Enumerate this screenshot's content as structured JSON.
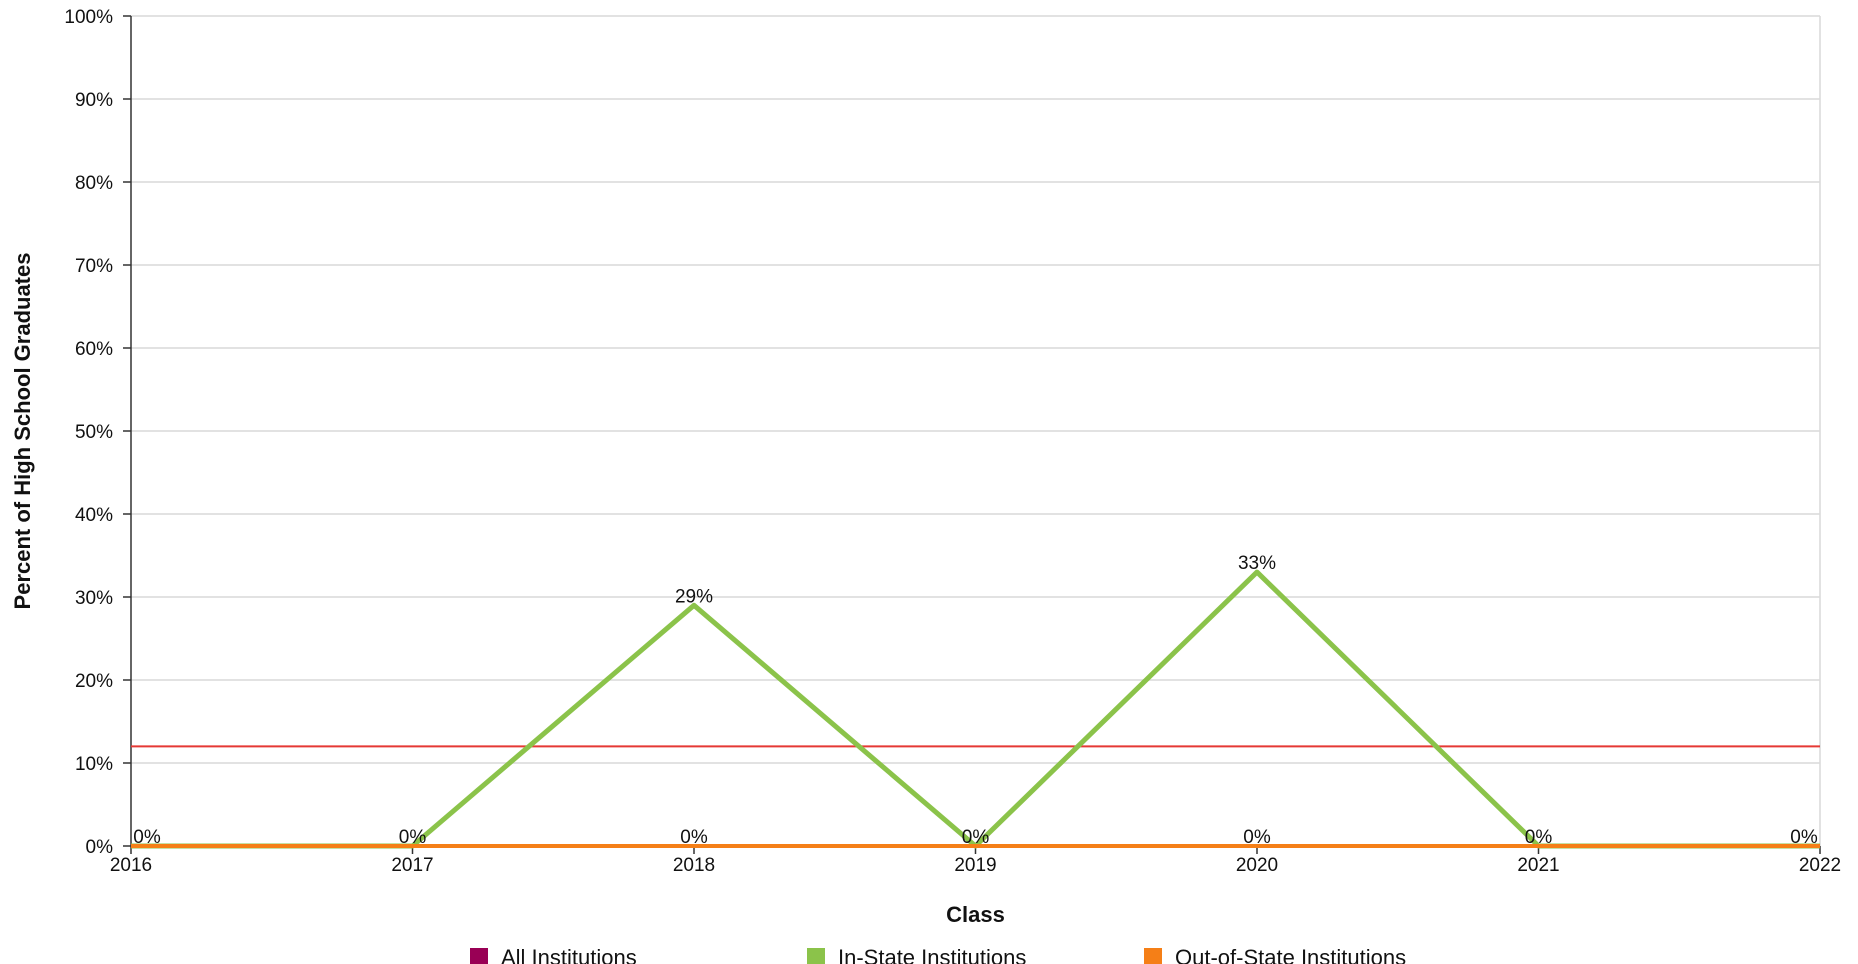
{
  "chart_data": {
    "type": "line",
    "title": "",
    "xlabel": "Class",
    "ylabel": "Percent of High School Graduates",
    "x": [
      "2016",
      "2017",
      "2018",
      "2019",
      "2020",
      "2021",
      "2022"
    ],
    "ylim": [
      0,
      100
    ],
    "y_ticks": [
      "0%",
      "10%",
      "20%",
      "30%",
      "40%",
      "50%",
      "60%",
      "70%",
      "80%",
      "90%",
      "100%"
    ],
    "grid": true,
    "legend_position": "bottom",
    "series": [
      {
        "name": "All Institutions",
        "color": "#990055",
        "values": [
          0,
          0,
          0,
          0,
          0,
          0,
          0
        ],
        "labels": [
          "0%",
          "0%",
          "0%",
          "0%",
          "0%",
          "0%",
          "0%"
        ]
      },
      {
        "name": "In-State Institutions",
        "color": "#8bc34a",
        "values": [
          0,
          0,
          29,
          0,
          33,
          0,
          0
        ],
        "labels": [
          "",
          "",
          "29%",
          "",
          "33%",
          "",
          ""
        ]
      },
      {
        "name": "Out-of-State Institutions",
        "color": "#f57f17",
        "values": [
          0,
          0,
          0,
          0,
          0,
          0,
          0
        ],
        "labels": [
          "",
          "",
          "",
          "",
          "",
          "",
          ""
        ]
      }
    ],
    "reference_line": {
      "value": 12,
      "color": "#e53935"
    }
  }
}
